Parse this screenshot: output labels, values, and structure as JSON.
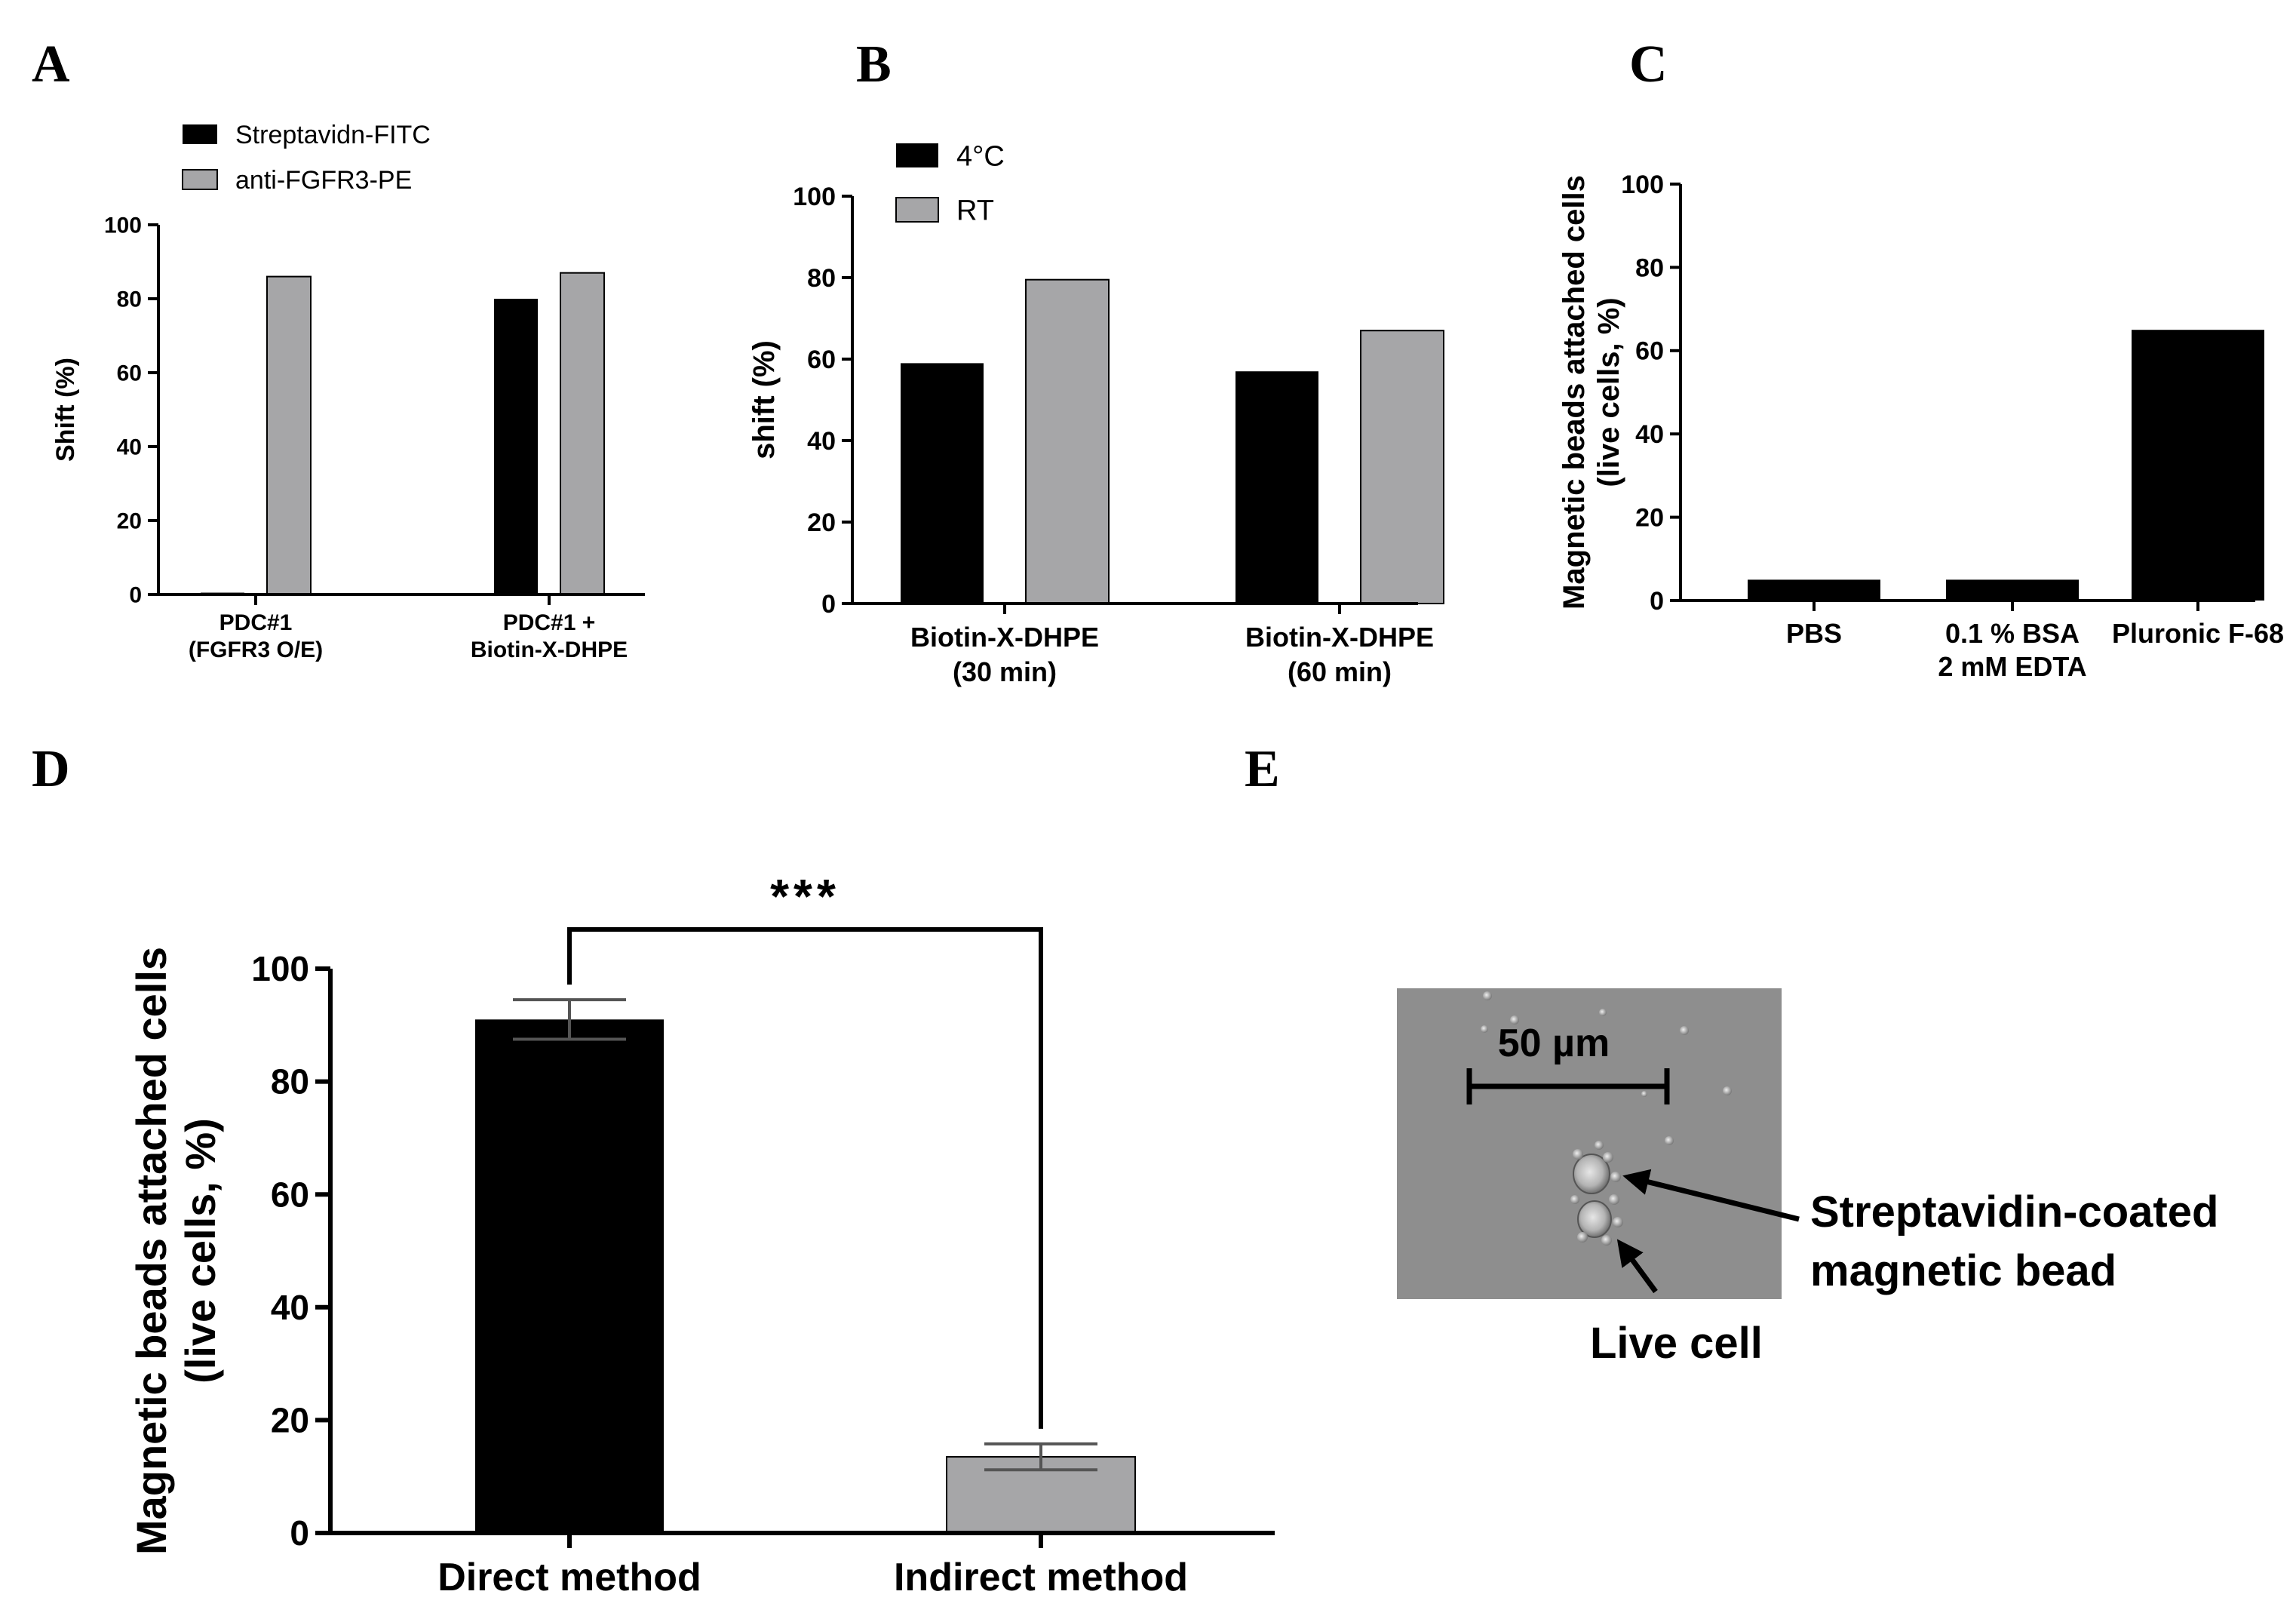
{
  "colors": {
    "black_bar": "#000000",
    "gray_bar": "#a6a6a8",
    "axis": "#000000",
    "micro_bg": "#8e8e8e"
  },
  "panels": {
    "A": {
      "letter": "A"
    },
    "B": {
      "letter": "B"
    },
    "C": {
      "letter": "C"
    },
    "D": {
      "letter": "D"
    },
    "E": {
      "letter": "E",
      "scale_bar_label": "50 µm",
      "annotation_bead_line1": "Streptavidin-coated",
      "annotation_bead_line2": "magnetic bead",
      "annotation_cell": "Live cell"
    }
  },
  "chart_data": [
    {
      "panel": "A",
      "type": "bar",
      "categories": [
        [
          "PDC#1",
          "(FGFR3 O/E)"
        ],
        [
          "PDC#1 +",
          "Biotin-X-DHPE"
        ]
      ],
      "series": [
        {
          "name": "Streptavidn-FITC",
          "color": "#000000",
          "values": [
            0.5,
            80
          ]
        },
        {
          "name": "anti-FGFR3-PE",
          "color": "#a6a6a8",
          "values": [
            86,
            87
          ]
        }
      ],
      "ylabel": "Shift (%)",
      "ylim": [
        0,
        100
      ],
      "yticks": [
        0,
        20,
        40,
        60,
        80,
        100
      ],
      "legend": "top-left"
    },
    {
      "panel": "B",
      "type": "bar",
      "categories": [
        [
          "Biotin-X-DHPE",
          "(30 min)"
        ],
        [
          "Biotin-X-DHPE",
          "(60 min)"
        ]
      ],
      "series": [
        {
          "name": "4°C",
          "color": "#000000",
          "values": [
            59,
            57
          ]
        },
        {
          "name": "RT",
          "color": "#a6a6a8",
          "values": [
            79.5,
            67
          ]
        }
      ],
      "ylabel": "shift  (%)",
      "ylim": [
        0,
        100
      ],
      "yticks": [
        0,
        20,
        40,
        60,
        80,
        100
      ],
      "legend": "top-left"
    },
    {
      "panel": "C",
      "type": "bar",
      "categories": [
        [
          "PBS"
        ],
        [
          "0.1 % BSA",
          "2 mM EDTA"
        ],
        [
          "Pluronic F-68"
        ]
      ],
      "series": [
        {
          "name": "",
          "color": "#000000",
          "values": [
            5,
            5,
            65
          ]
        }
      ],
      "ylabel_lines": [
        "Magnetic beads attached cells",
        "(live cells, %)"
      ],
      "ylim": [
        0,
        100
      ],
      "yticks": [
        0,
        20,
        40,
        60,
        80,
        100
      ]
    },
    {
      "panel": "D",
      "type": "bar",
      "categories": [
        [
          "Direct method"
        ],
        [
          "Indirect method"
        ]
      ],
      "series": [
        {
          "name": "",
          "values": [
            91,
            13.5
          ],
          "errors": [
            3.5,
            2.3
          ],
          "colors": [
            "#000000",
            "#a6a6a8"
          ]
        }
      ],
      "ylabel_lines": [
        "Magnetic beads attached cells",
        "(live cells, %)"
      ],
      "ylim": [
        0,
        100
      ],
      "yticks": [
        0,
        20,
        40,
        60,
        80,
        100
      ],
      "significance": "***"
    }
  ]
}
